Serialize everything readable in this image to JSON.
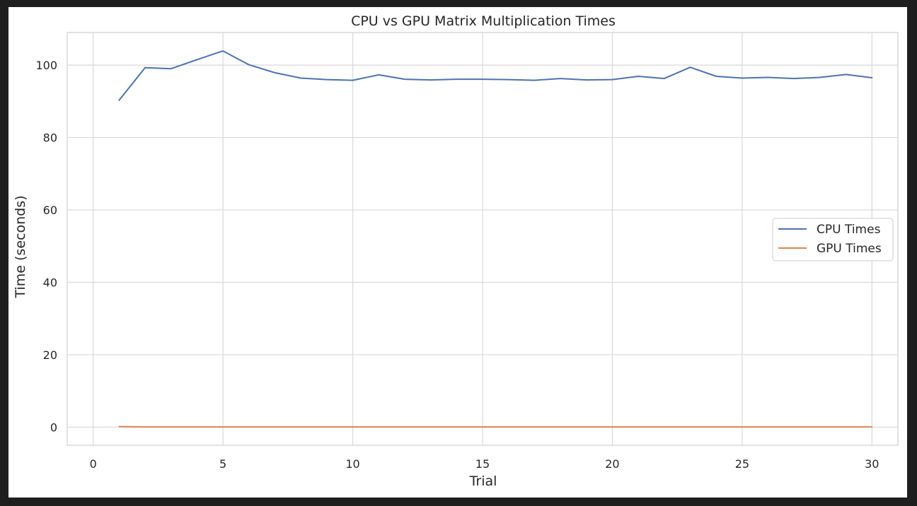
{
  "chart_data": {
    "type": "line",
    "title": "CPU vs GPU Matrix Multiplication Times",
    "xlabel": "Trial",
    "ylabel": "Time (seconds)",
    "xlim": [
      -1,
      31
    ],
    "ylim": [
      -5,
      109
    ],
    "xticks": [
      0,
      5,
      10,
      15,
      20,
      25,
      30
    ],
    "yticks": [
      0,
      20,
      40,
      60,
      80,
      100
    ],
    "grid": true,
    "legend_position": "center-right",
    "x": [
      1,
      2,
      3,
      4,
      5,
      6,
      7,
      8,
      9,
      10,
      11,
      12,
      13,
      14,
      15,
      16,
      17,
      18,
      19,
      20,
      21,
      22,
      23,
      24,
      25,
      26,
      27,
      28,
      29,
      30
    ],
    "series": [
      {
        "name": "CPU Times",
        "color": "#4c72b0",
        "values": [
          90.3,
          99.3,
          99.0,
          101.5,
          103.9,
          100.1,
          97.9,
          96.4,
          96.0,
          95.8,
          97.3,
          96.1,
          95.9,
          96.1,
          96.1,
          96.0,
          95.8,
          96.3,
          95.9,
          96.0,
          96.9,
          96.3,
          99.4,
          96.9,
          96.4,
          96.6,
          96.3,
          96.6,
          97.4,
          96.5
        ]
      },
      {
        "name": "GPU Times",
        "color": "#dd8452",
        "values": [
          0.15,
          0.05,
          0.05,
          0.05,
          0.05,
          0.05,
          0.05,
          0.05,
          0.05,
          0.05,
          0.05,
          0.05,
          0.05,
          0.05,
          0.05,
          0.05,
          0.05,
          0.05,
          0.05,
          0.05,
          0.05,
          0.05,
          0.05,
          0.05,
          0.05,
          0.05,
          0.05,
          0.05,
          0.05,
          0.05
        ]
      }
    ]
  },
  "colors": {
    "background": "#1e1e1e",
    "figure": "#ffffff",
    "grid": "#d9d9d9",
    "text": "#262626"
  }
}
